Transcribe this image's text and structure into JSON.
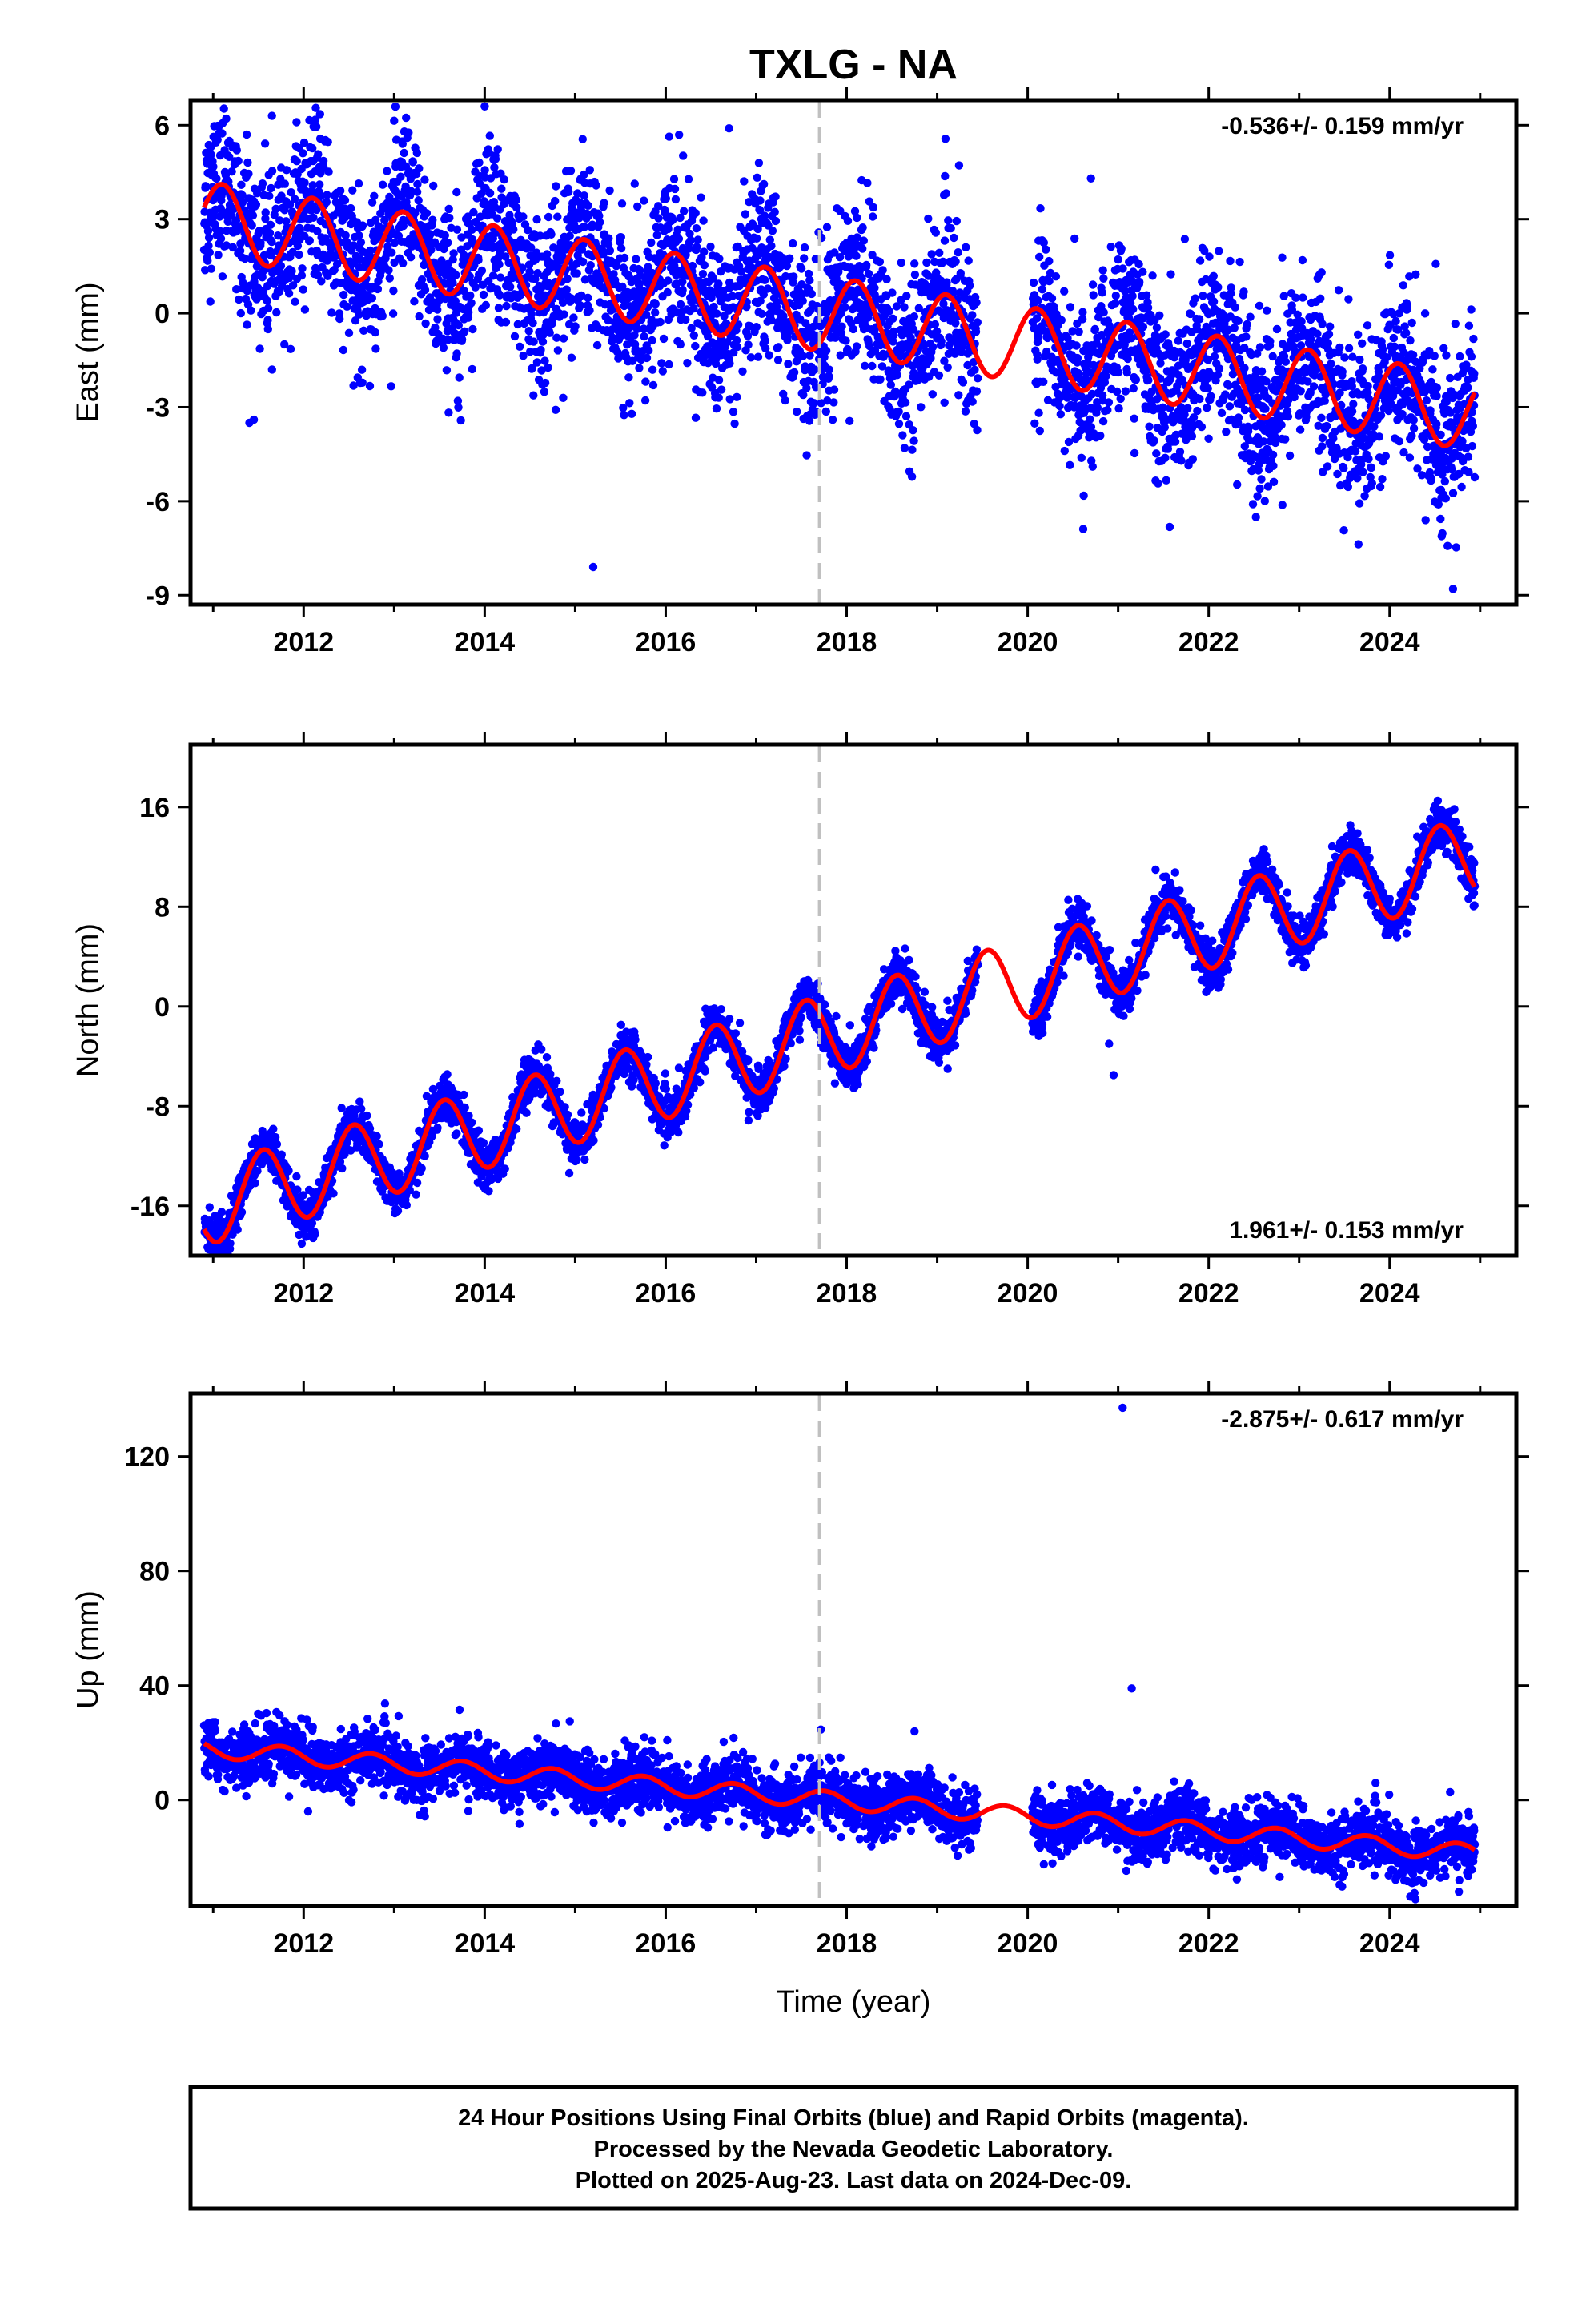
{
  "chart_data": {
    "type": "scatter",
    "title": "TXLG - NA",
    "x_range": [
      2010.75,
      2025.4
    ],
    "x_ticks": [
      "2012",
      "2014",
      "2016",
      "2018",
      "2020",
      "2022",
      "2024"
    ],
    "x_tick_values": [
      2012,
      2014,
      2016,
      2018,
      2020,
      2022,
      2024
    ],
    "xlabel": "Time (year)",
    "event_line_year": 2017.7,
    "data_start": 2010.9,
    "data_end": 2024.94,
    "data_gap": [
      2019.45,
      2020.05
    ],
    "colors": {
      "points": "#0000ff",
      "fit": "#ff0000",
      "event_line": "#c0c0c0"
    },
    "panels": [
      {
        "name": "east",
        "ylabel": "East (mm)",
        "ylim": [
          -9.3,
          6.8
        ],
        "y_ticks": [
          "6",
          "3",
          "0",
          "-3",
          "-6",
          "-9"
        ],
        "y_tick_values": [
          6,
          3,
          0,
          -3,
          -6,
          -9
        ],
        "rate_text": "-0.536+/- 0.159 mm/yr",
        "rate_position": "top-right",
        "fit": {
          "start_value": 3.0,
          "slope": -0.44,
          "amplitude": 1.2,
          "phase_peak": 0.1
        },
        "scatter_sigma": 1.3,
        "outliers": [
          [
            2011.45,
            -3.4
          ],
          [
            2011.4,
            -3.5
          ],
          [
            2015.2,
            -8.1
          ],
          [
            2014.0,
            6.6
          ],
          [
            2011.65,
            6.3
          ],
          [
            2016.7,
            5.9
          ],
          [
            2020.7,
            4.3
          ],
          [
            2024.7,
            -8.8
          ]
        ]
      },
      {
        "name": "north",
        "ylabel": "North (mm)",
        "ylim": [
          -20,
          21
        ],
        "y_ticks": [
          "16",
          "8",
          "0",
          "-8",
          "-16"
        ],
        "y_tick_values": [
          16,
          8,
          0,
          -8,
          -16
        ],
        "rate_text": "1.961+/- 0.153 mm/yr",
        "rate_position": "bottom-right",
        "fit": {
          "start_value": -16,
          "slope": 2.0,
          "amplitude": 3.2,
          "phase_peak": 0.55
        },
        "scatter_sigma": 0.9,
        "outliers": [
          [
            2020.95,
            -5.5
          ],
          [
            2020.9,
            -3.0
          ],
          [
            2010.95,
            -19.5
          ]
        ]
      },
      {
        "name": "up",
        "ylabel": "Up (mm)",
        "ylim": [
          -37,
          142
        ],
        "y_ticks": [
          "120",
          "80",
          "40",
          "0"
        ],
        "y_tick_values": [
          120,
          80,
          40,
          0
        ],
        "rate_text": "-2.875+/- 0.617 mm/yr",
        "rate_position": "top-right",
        "fit": {
          "start_value": 18,
          "slope": -2.6,
          "amplitude": 3.0,
          "phase_peak": 0.75
        },
        "scatter_sigma": 5.0,
        "outliers": [
          [
            2021.05,
            137
          ],
          [
            2021.15,
            39
          ],
          [
            2018.75,
            24
          ],
          [
            2012.05,
            -4
          ]
        ]
      }
    ]
  },
  "footer": {
    "line1": "24 Hour Positions Using Final Orbits (blue) and Rapid Orbits (magenta).",
    "line2": "Processed by the Nevada Geodetic Laboratory.",
    "line3": "Plotted on 2025-Aug-23. Last data on 2024-Dec-09."
  }
}
